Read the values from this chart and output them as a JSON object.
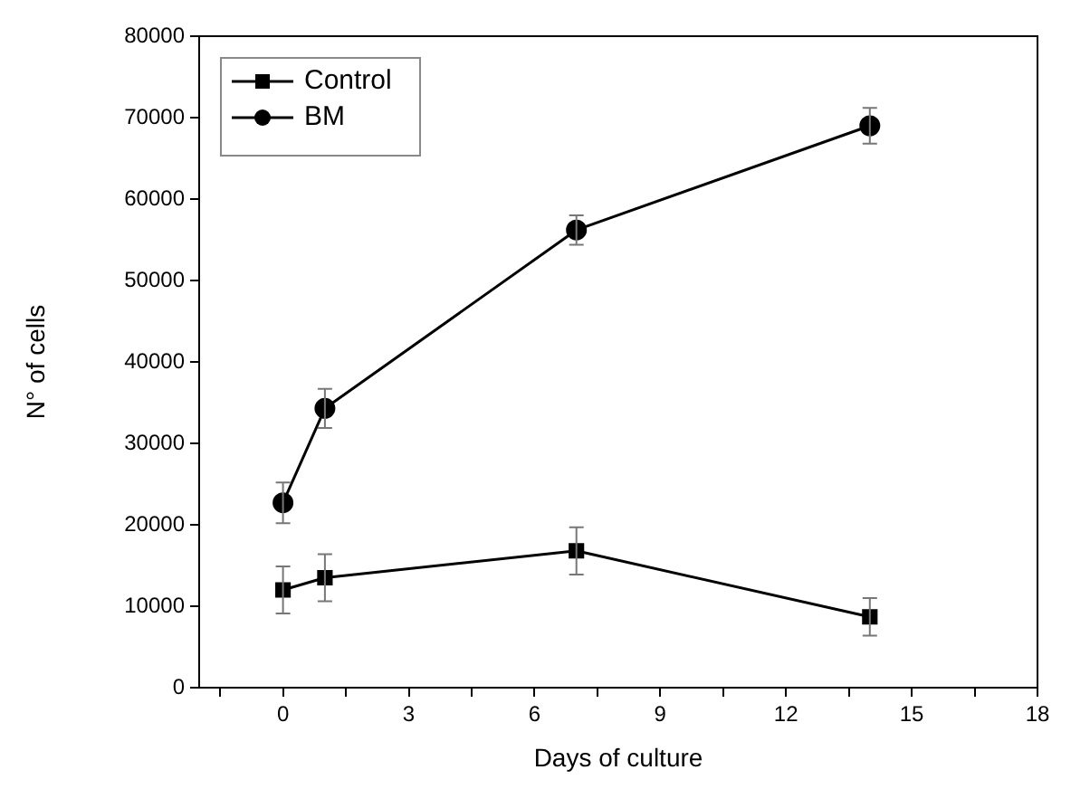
{
  "chart_data": {
    "type": "line",
    "xlabel": "Days of culture",
    "ylabel": "N° of cells",
    "xlim": [
      -2,
      18
    ],
    "xticks": [
      {
        "value": -1.5,
        "label": null
      },
      0,
      {
        "value": 1.5,
        "label": null
      },
      3,
      {
        "value": 4.5,
        "label": null
      },
      6,
      {
        "value": 7.5,
        "label": null
      },
      9,
      {
        "value": 10.5,
        "label": null
      },
      12,
      {
        "value": 13.5,
        "label": null
      },
      15,
      {
        "value": 16.5,
        "label": null
      },
      18
    ],
    "ylim": [
      0,
      80000
    ],
    "yticks": [
      0,
      10000,
      20000,
      30000,
      40000,
      50000,
      60000,
      70000,
      80000
    ],
    "grid": false,
    "legend": "top left",
    "line_style": "solid",
    "series": [
      {
        "name": "Control",
        "color": "#000000",
        "marker": "square",
        "x": [
          0,
          1,
          7,
          14
        ],
        "values": [
          12000,
          13500,
          16800,
          8700
        ],
        "errors": [
          2900,
          2900,
          2900,
          2300
        ]
      },
      {
        "name": "BM",
        "color": "#000000",
        "marker": "circle",
        "x": [
          0,
          1,
          7,
          14
        ],
        "values": [
          22700,
          34300,
          56200,
          69000
        ],
        "errors": [
          2500,
          2400,
          1800,
          2200
        ]
      }
    ]
  }
}
